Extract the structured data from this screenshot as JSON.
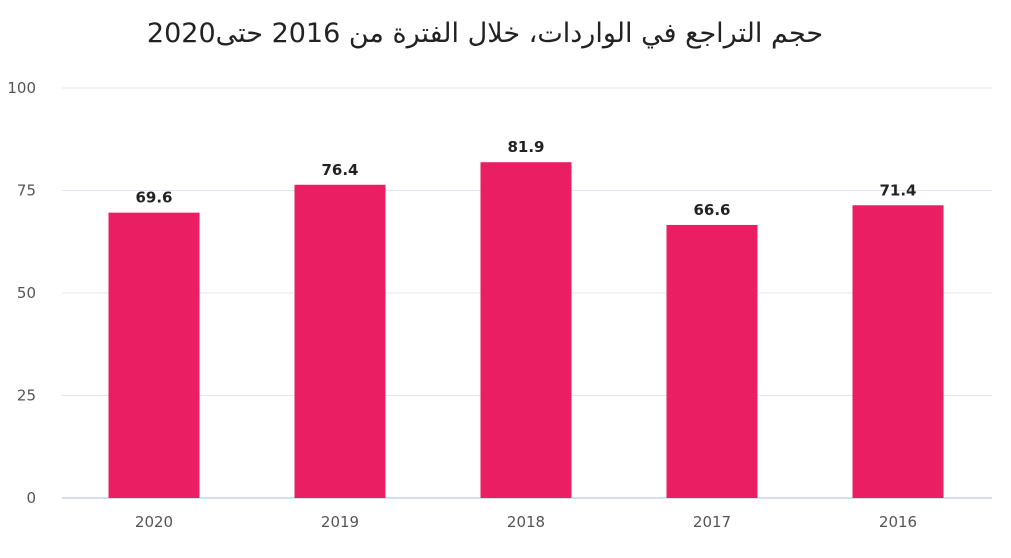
{
  "chart_data": {
    "type": "bar",
    "title": "حجم التراجع في الواردات، خلال الفترة من 2016 حتى2020",
    "categories": [
      "2020",
      "2019",
      "2018",
      "2017",
      "2016"
    ],
    "series": [
      {
        "values": [
          69.6,
          76.4,
          81.9,
          66.6,
          71.4
        ],
        "color": "#e91e63"
      }
    ],
    "ylim": [
      0,
      100
    ],
    "yticks": [
      0,
      25,
      50,
      75,
      100
    ],
    "grid": true,
    "xlabel": "",
    "ylabel": ""
  }
}
